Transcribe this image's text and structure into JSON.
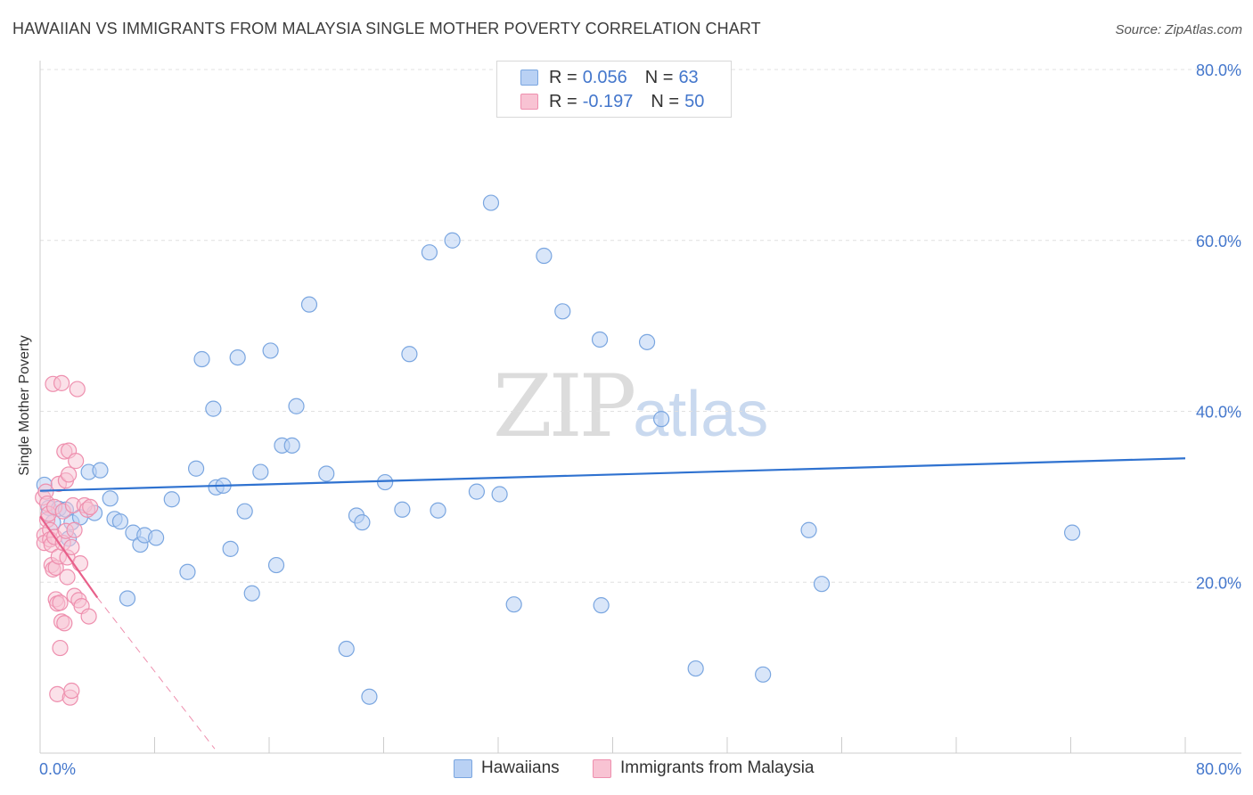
{
  "title": "HAWAIIAN VS IMMIGRANTS FROM MALAYSIA SINGLE MOTHER POVERTY CORRELATION CHART",
  "source": "Source: ZipAtlas.com",
  "watermark": {
    "zip": "ZIP",
    "atlas": "atlas"
  },
  "colors": {
    "blue_fill": "#b9d1f4",
    "blue_stroke": "#7aa6e0",
    "blue_line": "#2f72d0",
    "pink_fill": "#f8c3d3",
    "pink_stroke": "#ee8fae",
    "pink_line": "#e8608a",
    "axis_label": "#4477cc",
    "grid": "#e0e0e0"
  },
  "legend": {
    "row1": {
      "r_label": "R =",
      "r_value": "0.056",
      "n_label": "N =",
      "n_value": "63"
    },
    "row2": {
      "r_label": "R =",
      "r_value": "-0.197",
      "n_label": "N =",
      "n_value": "50"
    }
  },
  "chart_data": {
    "type": "scatter",
    "title": "HAWAIIAN VS IMMIGRANTS FROM MALAYSIA SINGLE MOTHER POVERTY CORRELATION CHART",
    "xlabel": "",
    "ylabel": "Single Mother Poverty",
    "xlim": [
      0,
      80
    ],
    "ylim": [
      0,
      80
    ],
    "x_tick_labels": [
      "0.0%",
      "80.0%"
    ],
    "y_tick_labels": [
      "20.0%",
      "40.0%",
      "60.0%",
      "80.0%"
    ],
    "y_ticks": [
      20,
      40,
      60,
      80
    ],
    "legend_position": "bottom",
    "series": [
      {
        "name": "Hawaiians",
        "color": "#7aa6e0",
        "trend": {
          "x0": 0,
          "y0": 30.7,
          "x1": 80,
          "y1": 34.5
        },
        "points": [
          [
            0.3,
            31.4
          ],
          [
            0.6,
            28.7
          ],
          [
            0.9,
            27.0
          ],
          [
            1.3,
            28.6
          ],
          [
            1.8,
            28.5
          ],
          [
            2.0,
            25.1
          ],
          [
            2.2,
            27.0
          ],
          [
            2.8,
            27.6
          ],
          [
            3.4,
            32.9
          ],
          [
            3.8,
            28.1
          ],
          [
            4.2,
            33.1
          ],
          [
            4.9,
            29.8
          ],
          [
            5.2,
            27.4
          ],
          [
            5.6,
            27.1
          ],
          [
            6.1,
            18.1
          ],
          [
            6.5,
            25.8
          ],
          [
            7.0,
            24.4
          ],
          [
            7.3,
            25.5
          ],
          [
            8.1,
            25.2
          ],
          [
            9.2,
            29.7
          ],
          [
            10.3,
            21.2
          ],
          [
            10.9,
            33.3
          ],
          [
            11.3,
            46.1
          ],
          [
            12.1,
            40.3
          ],
          [
            12.3,
            31.1
          ],
          [
            12.8,
            31.3
          ],
          [
            13.3,
            23.9
          ],
          [
            13.8,
            46.3
          ],
          [
            14.3,
            28.3
          ],
          [
            14.8,
            18.7
          ],
          [
            15.4,
            32.9
          ],
          [
            16.1,
            47.1
          ],
          [
            16.5,
            22.0
          ],
          [
            16.9,
            36.0
          ],
          [
            17.6,
            36.0
          ],
          [
            17.9,
            40.6
          ],
          [
            18.8,
            52.5
          ],
          [
            20.0,
            32.7
          ],
          [
            21.4,
            12.2
          ],
          [
            22.1,
            27.8
          ],
          [
            22.5,
            27.0
          ],
          [
            23.0,
            6.6
          ],
          [
            24.1,
            31.7
          ],
          [
            25.3,
            28.5
          ],
          [
            25.8,
            46.7
          ],
          [
            27.2,
            58.6
          ],
          [
            27.8,
            28.4
          ],
          [
            28.8,
            60.0
          ],
          [
            30.5,
            30.6
          ],
          [
            31.5,
            64.4
          ],
          [
            32.1,
            30.3
          ],
          [
            33.1,
            17.4
          ],
          [
            35.2,
            58.2
          ],
          [
            36.5,
            51.7
          ],
          [
            39.1,
            48.4
          ],
          [
            39.2,
            17.3
          ],
          [
            42.4,
            48.1
          ],
          [
            43.4,
            39.1
          ],
          [
            45.8,
            9.9
          ],
          [
            50.5,
            9.2
          ],
          [
            53.7,
            26.1
          ],
          [
            54.6,
            19.8
          ],
          [
            72.1,
            25.8
          ]
        ]
      },
      {
        "name": "Immigrants from Malaysia",
        "color": "#ee8fae",
        "trend": {
          "x0": 0,
          "y0": 27.7,
          "x1": 4.0,
          "y1": 18.2,
          "dash_x1": 12.2,
          "dash_y1": 0.5
        },
        "points": [
          [
            0.2,
            29.9
          ],
          [
            0.3,
            25.5
          ],
          [
            0.3,
            24.6
          ],
          [
            0.4,
            30.6
          ],
          [
            0.5,
            27.3
          ],
          [
            0.5,
            29.2
          ],
          [
            0.6,
            28.0
          ],
          [
            0.7,
            26.1
          ],
          [
            0.7,
            25.0
          ],
          [
            0.8,
            24.4
          ],
          [
            0.8,
            22.0
          ],
          [
            0.9,
            21.5
          ],
          [
            0.9,
            43.2
          ],
          [
            1.0,
            28.8
          ],
          [
            1.0,
            25.3
          ],
          [
            1.1,
            21.7
          ],
          [
            1.1,
            18.0
          ],
          [
            1.2,
            17.5
          ],
          [
            1.2,
            6.9
          ],
          [
            1.3,
            31.5
          ],
          [
            1.3,
            23.0
          ],
          [
            1.4,
            12.3
          ],
          [
            1.4,
            17.6
          ],
          [
            1.5,
            15.4
          ],
          [
            1.5,
            43.3
          ],
          [
            1.6,
            28.3
          ],
          [
            1.6,
            24.6
          ],
          [
            1.7,
            35.3
          ],
          [
            1.7,
            15.2
          ],
          [
            1.8,
            31.9
          ],
          [
            1.8,
            26.0
          ],
          [
            1.9,
            22.9
          ],
          [
            1.9,
            20.6
          ],
          [
            2.0,
            35.4
          ],
          [
            2.0,
            32.6
          ],
          [
            2.1,
            6.5
          ],
          [
            2.2,
            7.3
          ],
          [
            2.2,
            24.1
          ],
          [
            2.3,
            29.0
          ],
          [
            2.4,
            26.1
          ],
          [
            2.4,
            18.4
          ],
          [
            2.5,
            34.2
          ],
          [
            2.6,
            42.6
          ],
          [
            2.7,
            17.9
          ],
          [
            2.8,
            22.2
          ],
          [
            2.9,
            17.2
          ],
          [
            3.1,
            29.0
          ],
          [
            3.3,
            28.5
          ],
          [
            3.4,
            16.0
          ],
          [
            3.5,
            28.8
          ]
        ]
      }
    ]
  },
  "bottom_legend": {
    "item1": "Hawaiians",
    "item2": "Immigrants from Malaysia"
  }
}
